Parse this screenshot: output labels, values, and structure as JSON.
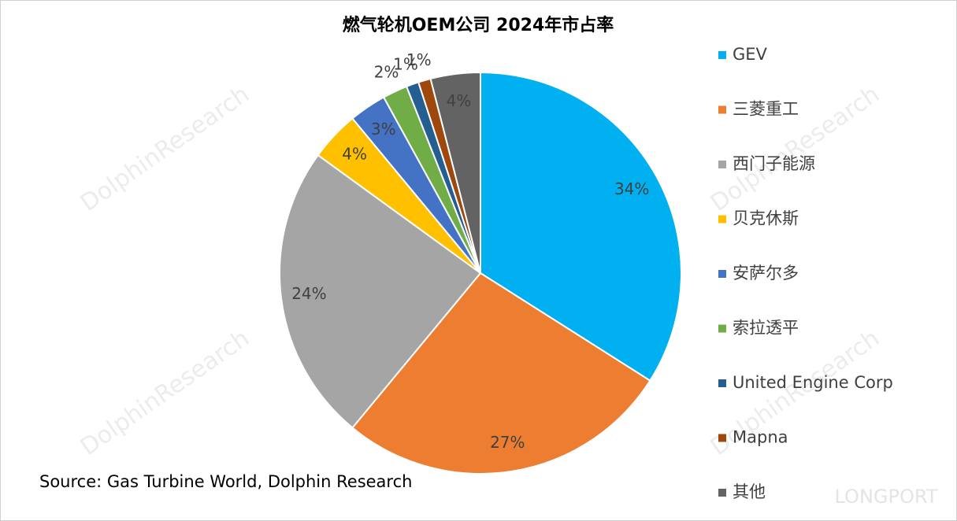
{
  "chart_data": {
    "type": "pie",
    "title": "燃气轮机OEM公司 2024年市占率",
    "categories": [
      "GEV",
      "三菱重工",
      "西门子能源",
      "贝克休斯",
      "安萨尔多",
      "索拉透平",
      "United Engine Corp",
      "Mapna",
      "其他"
    ],
    "values": [
      34,
      27,
      24,
      4,
      3,
      2,
      1,
      1,
      4
    ],
    "value_labels": [
      "34%",
      "27%",
      "24%",
      "4%",
      "3%",
      "2%",
      "1%",
      "1%",
      "4%"
    ],
    "colors": [
      "#00b0f0",
      "#ed7d31",
      "#a5a5a5",
      "#ffc000",
      "#4472c4",
      "#70ad47",
      "#255e91",
      "#9e480e",
      "#636363"
    ],
    "legend": "right",
    "source": "Source: Gas Turbine World, Dolphin Research"
  },
  "watermark": "DolphinResearch",
  "logo": "LONGPORT"
}
